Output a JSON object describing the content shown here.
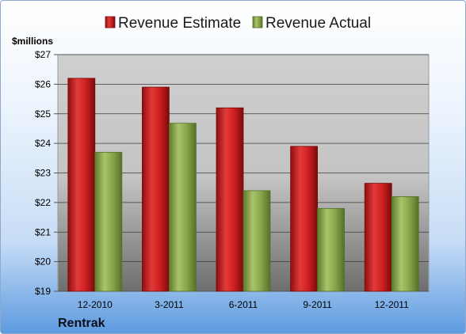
{
  "company": "Rentrak",
  "chart_data": {
    "type": "bar",
    "ylabel": "$millions",
    "ylim": [
      19,
      27
    ],
    "ytick_labels": [
      "$19",
      "$20",
      "$21",
      "$22",
      "$23",
      "$24",
      "$25",
      "$26",
      "$27"
    ],
    "categories": [
      "12-2010",
      "3-2011",
      "6-2011",
      "9-2011",
      "12-2011"
    ],
    "series": [
      {
        "name": "Revenue Estimate",
        "color": "#cc1f1f",
        "values": [
          26.2,
          25.9,
          25.2,
          23.9,
          22.65
        ]
      },
      {
        "name": "Revenue Actual",
        "color": "#8aa64a",
        "values": [
          23.7,
          24.68,
          22.4,
          21.8,
          22.2
        ]
      }
    ],
    "grid": true,
    "legend": "top-center"
  }
}
